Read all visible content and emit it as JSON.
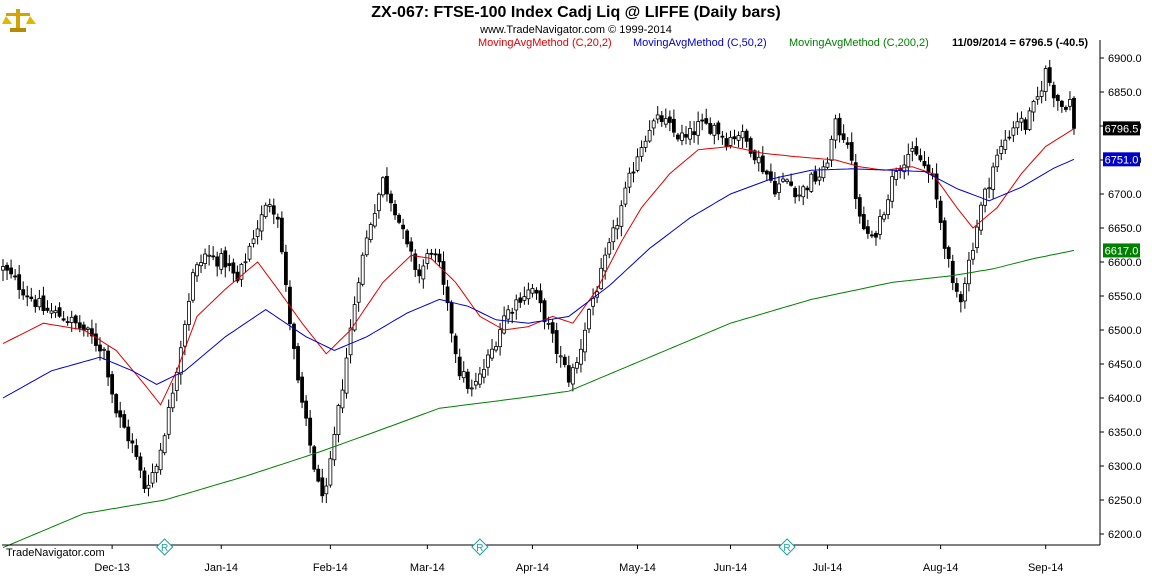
{
  "header": {
    "title": "ZX-067:  FTSE-100 Index Cadj Liq @ LIFFE  (Daily bars)",
    "subtitle": "www.TradeNavigator.com © 1999-2014",
    "legend": [
      {
        "label": "MovingAvgMethod (C,20,2)",
        "color": "#e00000"
      },
      {
        "label": "MovingAvgMethod (C,50,2)",
        "color": "#0000cc"
      },
      {
        "label": "MovingAvgMethod (C,200,2)",
        "color": "#008000"
      }
    ],
    "last_info": "11/09/2014 = 6796.5 (-40.5)"
  },
  "footer": {
    "watermark": "TradeNavigator.com",
    "marker_icon": "registered-diamond-icon",
    "marker_color": "#20a0a0"
  },
  "price_tags": [
    {
      "label": "6796.5",
      "value": 6796.5,
      "bg": "#000000",
      "fg": "#ffffff"
    },
    {
      "label": "6751.0",
      "value": 6751.0,
      "bg": "#0000cc",
      "fg": "#ffffff"
    },
    {
      "label": "6617.0",
      "value": 6617.0,
      "bg": "#008000",
      "fg": "#ffffff"
    }
  ],
  "chart_data": {
    "type": "candlestick",
    "ylim": [
      6180,
      6920
    ],
    "ytick_labels": [
      "6900.0",
      "6850.0",
      "6800.0",
      "6750.0",
      "6700.0",
      "6650.0",
      "6600.0",
      "6550.0",
      "6500.0",
      "6450.0",
      "6400.0",
      "6350.0",
      "6300.0",
      "6250.0",
      "6200.0"
    ],
    "xtick_labels": [
      "Dec-13",
      "Jan-14",
      "Feb-14",
      "Mar-14",
      "Apr-14",
      "May-14",
      "Jun-14",
      "Jul-14",
      "Aug-14",
      "Sep-14"
    ],
    "xtick_bar_index": [
      27,
      54,
      81,
      105,
      131,
      157,
      180,
      204,
      232,
      258
    ],
    "marker_bar_index": [
      40,
      118,
      194
    ],
    "series_colors": {
      "ma20": "#e00000",
      "ma50": "#0000cc",
      "ma200": "#008000"
    },
    "keypoints": [
      [
        0,
        6590
      ],
      [
        5,
        6560
      ],
      [
        10,
        6530
      ],
      [
        15,
        6520
      ],
      [
        20,
        6500
      ],
      [
        25,
        6470
      ],
      [
        28,
        6380
      ],
      [
        32,
        6330
      ],
      [
        35,
        6270
      ],
      [
        38,
        6300
      ],
      [
        41,
        6380
      ],
      [
        44,
        6480
      ],
      [
        47,
        6580
      ],
      [
        50,
        6610
      ],
      [
        55,
        6600
      ],
      [
        58,
        6570
      ],
      [
        62,
        6640
      ],
      [
        66,
        6690
      ],
      [
        68,
        6670
      ],
      [
        70,
        6560
      ],
      [
        73,
        6420
      ],
      [
        76,
        6330
      ],
      [
        78,
        6270
      ],
      [
        80,
        6260
      ],
      [
        82,
        6340
      ],
      [
        85,
        6460
      ],
      [
        88,
        6580
      ],
      [
        91,
        6660
      ],
      [
        94,
        6720
      ],
      [
        97,
        6680
      ],
      [
        100,
        6620
      ],
      [
        103,
        6580
      ],
      [
        106,
        6620
      ],
      [
        108,
        6590
      ],
      [
        110,
        6530
      ],
      [
        113,
        6440
      ],
      [
        116,
        6410
      ],
      [
        118,
        6430
      ],
      [
        121,
        6470
      ],
      [
        124,
        6520
      ],
      [
        128,
        6550
      ],
      [
        131,
        6560
      ],
      [
        134,
        6520
      ],
      [
        137,
        6470
      ],
      [
        140,
        6430
      ],
      [
        142,
        6450
      ],
      [
        145,
        6530
      ],
      [
        148,
        6580
      ],
      [
        151,
        6640
      ],
      [
        154,
        6700
      ],
      [
        157,
        6760
      ],
      [
        160,
        6800
      ],
      [
        163,
        6810
      ],
      [
        166,
        6790
      ],
      [
        169,
        6780
      ],
      [
        172,
        6800
      ],
      [
        176,
        6800
      ],
      [
        179,
        6780
      ],
      [
        182,
        6790
      ],
      [
        185,
        6770
      ],
      [
        188,
        6740
      ],
      [
        191,
        6710
      ],
      [
        194,
        6720
      ],
      [
        197,
        6700
      ],
      [
        200,
        6720
      ],
      [
        203,
        6730
      ],
      [
        206,
        6800
      ],
      [
        209,
        6780
      ],
      [
        212,
        6660
      ],
      [
        215,
        6630
      ],
      [
        218,
        6680
      ],
      [
        221,
        6740
      ],
      [
        224,
        6760
      ],
      [
        227,
        6750
      ],
      [
        230,
        6720
      ],
      [
        233,
        6630
      ],
      [
        235,
        6560
      ],
      [
        237,
        6550
      ],
      [
        239,
        6600
      ],
      [
        242,
        6680
      ],
      [
        245,
        6740
      ],
      [
        248,
        6780
      ],
      [
        251,
        6810
      ],
      [
        253,
        6800
      ],
      [
        256,
        6840
      ],
      [
        258,
        6880
      ],
      [
        260,
        6850
      ],
      [
        262,
        6830
      ],
      [
        264,
        6837
      ],
      [
        265,
        6796.5
      ]
    ],
    "moving_averages": {
      "ma20": [
        [
          0,
          6480
        ],
        [
          10,
          6510
        ],
        [
          20,
          6500
        ],
        [
          28,
          6470
        ],
        [
          35,
          6420
        ],
        [
          39,
          6390
        ],
        [
          43,
          6440
        ],
        [
          48,
          6520
        ],
        [
          55,
          6560
        ],
        [
          63,
          6600
        ],
        [
          68,
          6560
        ],
        [
          74,
          6510
        ],
        [
          80,
          6465
        ],
        [
          86,
          6500
        ],
        [
          94,
          6570
        ],
        [
          101,
          6610
        ],
        [
          106,
          6605
        ],
        [
          112,
          6570
        ],
        [
          118,
          6520
        ],
        [
          124,
          6500
        ],
        [
          130,
          6505
        ],
        [
          136,
          6520
        ],
        [
          141,
          6510
        ],
        [
          147,
          6560
        ],
        [
          153,
          6630
        ],
        [
          158,
          6680
        ],
        [
          165,
          6730
        ],
        [
          172,
          6765
        ],
        [
          180,
          6770
        ],
        [
          188,
          6760
        ],
        [
          196,
          6755
        ],
        [
          206,
          6750
        ],
        [
          212,
          6740
        ],
        [
          218,
          6735
        ],
        [
          225,
          6740
        ],
        [
          230,
          6730
        ],
        [
          236,
          6680
        ],
        [
          240,
          6650
        ],
        [
          246,
          6680
        ],
        [
          252,
          6730
        ],
        [
          258,
          6770
        ],
        [
          265,
          6796
        ]
      ],
      "ma50": [
        [
          0,
          6400
        ],
        [
          12,
          6440
        ],
        [
          24,
          6460
        ],
        [
          32,
          6440
        ],
        [
          38,
          6420
        ],
        [
          45,
          6440
        ],
        [
          55,
          6490
        ],
        [
          65,
          6530
        ],
        [
          75,
          6490
        ],
        [
          82,
          6470
        ],
        [
          90,
          6490
        ],
        [
          100,
          6525
        ],
        [
          108,
          6545
        ],
        [
          115,
          6535
        ],
        [
          122,
          6515
        ],
        [
          130,
          6510
        ],
        [
          140,
          6520
        ],
        [
          150,
          6565
        ],
        [
          160,
          6620
        ],
        [
          170,
          6665
        ],
        [
          180,
          6700
        ],
        [
          190,
          6722
        ],
        [
          200,
          6735
        ],
        [
          210,
          6737
        ],
        [
          220,
          6735
        ],
        [
          228,
          6733
        ],
        [
          236,
          6708
        ],
        [
          244,
          6690
        ],
        [
          252,
          6710
        ],
        [
          260,
          6738
        ],
        [
          265,
          6751
        ]
      ],
      "ma200": [
        [
          0,
          6180
        ],
        [
          20,
          6230
        ],
        [
          40,
          6250
        ],
        [
          60,
          6285
        ],
        [
          78,
          6320
        ],
        [
          92,
          6350
        ],
        [
          108,
          6385
        ],
        [
          128,
          6400
        ],
        [
          140,
          6410
        ],
        [
          160,
          6460
        ],
        [
          180,
          6510
        ],
        [
          200,
          6545
        ],
        [
          220,
          6570
        ],
        [
          235,
          6580
        ],
        [
          245,
          6590
        ],
        [
          255,
          6605
        ],
        [
          265,
          6617
        ]
      ]
    }
  }
}
